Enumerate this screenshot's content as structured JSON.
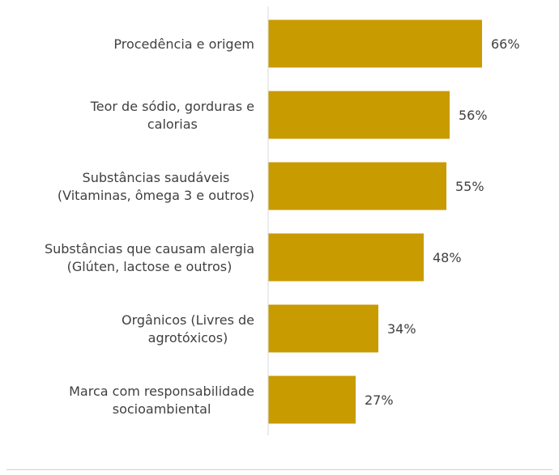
{
  "chart_data": {
    "type": "bar",
    "orientation": "horizontal",
    "categories": [
      [
        "Procedência e origem"
      ],
      [
        "Teor de sódio, gorduras e",
        "calorias"
      ],
      [
        "Substâncias saudáveis",
        "(Vitaminas, ômega 3 e outros)"
      ],
      [
        "Substâncias que causam alergia",
        "(Glúten, lactose e outros)"
      ],
      [
        "Orgânicos (Livres de",
        "agrotóxicos)"
      ],
      [
        "Marca com responsabilidade",
        "socioambiental"
      ]
    ],
    "values": [
      66,
      56,
      55,
      48,
      34,
      27
    ],
    "data_labels": [
      "66%",
      "56%",
      "55%",
      "48%",
      "34%",
      "27%"
    ],
    "xlim": [
      0,
      80
    ],
    "grid": false,
    "legend": "none",
    "bar_color": "#c89b00",
    "text_color": "#404040",
    "axis_color": "#d9d9d9"
  }
}
